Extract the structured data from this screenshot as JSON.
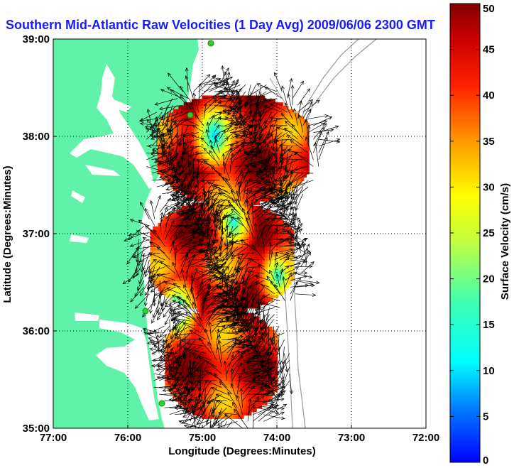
{
  "chart_data": {
    "type": "vector_field_map",
    "title": "Southern Mid-Atlantic Raw Velocities (1 Day Avg) 2009/06/06 2300 GMT",
    "xlabel": "Longitude (Degrees:Minutes)",
    "ylabel": "Latitude (Degrees:Minutes)",
    "x_ticks": [
      "77:00",
      "76:00",
      "75:00",
      "74:00",
      "73:00",
      "72:00"
    ],
    "y_ticks": [
      "39:00",
      "38:00",
      "37:00",
      "36:00",
      "35:00"
    ],
    "xlim": [
      -77,
      -72
    ],
    "ylim": [
      35,
      39
    ],
    "grid": true,
    "colorbar": {
      "label": "Surface Velocity (cm/s)",
      "min": 0,
      "max": 50,
      "ticks": [
        "0",
        "5",
        "10",
        "15",
        "20",
        "25",
        "30",
        "35",
        "40",
        "45",
        "50"
      ]
    },
    "regions": [
      {
        "lon_range": [
          -75.6,
          -73.6
        ],
        "lat_range": [
          37.3,
          38.4
        ],
        "speed_range": [
          10,
          50
        ]
      },
      {
        "lon_range": [
          -75.7,
          -73.8
        ],
        "lat_range": [
          36.2,
          37.3
        ],
        "speed_range": [
          12,
          50
        ]
      },
      {
        "lon_range": [
          -75.5,
          -74.0
        ],
        "lat_range": [
          35.1,
          36.2
        ],
        "speed_range": [
          15,
          50
        ]
      }
    ],
    "low_speed_spots": [
      {
        "lon": -74.85,
        "lat": 38.0,
        "speed": 8
      },
      {
        "lon": -75.35,
        "lat": 36.2,
        "speed": 10
      },
      {
        "lon": -74.6,
        "lat": 37.1,
        "speed": 13
      },
      {
        "lon": -74.0,
        "lat": 36.55,
        "speed": 14
      }
    ],
    "colors": {
      "land": "#5ff2a8",
      "water": "#ffffff",
      "title": "#1a1aff",
      "grid": "#000000",
      "bathymetry": "#999999",
      "station": "#33cc33"
    }
  }
}
